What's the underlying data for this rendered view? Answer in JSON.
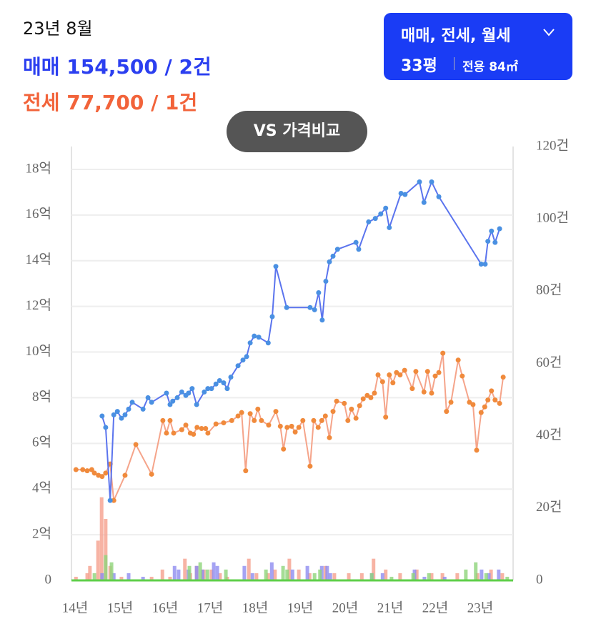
{
  "header": {
    "period": "23년 8월",
    "sale": "매매 154,500 / 2건",
    "jeonse": "전세 77,700 / 1건"
  },
  "filter": {
    "types": "매매, 전세, 월세",
    "size": "33평",
    "area": "전용 84㎡"
  },
  "compare_button": "VS 가격비교",
  "chart_data": {
    "type": "combo",
    "grid": true,
    "xlim": [
      2013.92,
      2023.73
    ],
    "xticks": [
      {
        "value": 2014,
        "label": "14년"
      },
      {
        "value": 2015,
        "label": "15년"
      },
      {
        "value": 2016,
        "label": "16년"
      },
      {
        "value": 2017,
        "label": "17년"
      },
      {
        "value": 2018,
        "label": "18년"
      },
      {
        "value": 2019,
        "label": "19년"
      },
      {
        "value": 2020,
        "label": "20년"
      },
      {
        "value": 2021,
        "label": "21년"
      },
      {
        "value": 2022,
        "label": "22년"
      },
      {
        "value": 2023,
        "label": "23년"
      }
    ],
    "ylim": [
      0,
      19
    ],
    "yticks": [
      0,
      {
        "value": 2,
        "label": "2억"
      },
      {
        "value": 4,
        "label": "4억"
      },
      {
        "value": 6,
        "label": "6억"
      },
      {
        "value": 8,
        "label": "8억"
      },
      {
        "value": 10,
        "label": "10억"
      },
      {
        "value": 12,
        "label": "12억"
      },
      {
        "value": 14,
        "label": "14억"
      },
      {
        "value": 16,
        "label": "16억"
      },
      {
        "value": 18,
        "label": "18억"
      }
    ],
    "y2lim": [
      0,
      120
    ],
    "y2ticks": [
      0,
      {
        "value": 20,
        "label": "20건"
      },
      {
        "value": 40,
        "label": "40건"
      },
      {
        "value": 60,
        "label": "60건"
      },
      {
        "value": 80,
        "label": "80건"
      },
      {
        "value": 100,
        "label": "100건"
      },
      {
        "value": 120,
        "label": "120건"
      }
    ],
    "series": [
      {
        "type": "bar",
        "axis": "y2",
        "color": "#f5a08d",
        "x": [
          2014.02,
          2014.27,
          2014.33,
          2014.51,
          2014.59,
          2014.68,
          2014.78,
          2015.03,
          2015.7,
          2015.94,
          2016.11,
          2016.44,
          2016.56,
          2016.7,
          2016.86,
          2017.03,
          2017.22,
          2017.38,
          2017.86,
          2018.03,
          2018.29,
          2018.44,
          2018.76,
          2018.97,
          2019.21,
          2019.56,
          2019.76,
          2020.08,
          2020.37,
          2020.63,
          2020.9,
          2021.22,
          2021.59,
          2021.92,
          2022.16,
          2022.49,
          2022.94,
          2023.24,
          2023.49
        ],
        "values": [
          1,
          2,
          4,
          11,
          23,
          17,
          4,
          1,
          1,
          3,
          1,
          6,
          2,
          4,
          3,
          3,
          2,
          1,
          6,
          2,
          2,
          3,
          6,
          3,
          2,
          4,
          2,
          2,
          2,
          6,
          3,
          2,
          3,
          2,
          2,
          2,
          2,
          3,
          2
        ]
      },
      {
        "type": "bar",
        "axis": "y2",
        "color": "#8f8cf0",
        "x": [
          2014.6,
          2014.86,
          2015.19,
          2015.51,
          2016.21,
          2016.3,
          2016.52,
          2016.7,
          2016.83,
          2017.08,
          2017.16,
          2017.76,
          2017.94,
          2018.37,
          2018.83,
          2019.16,
          2019.48,
          2019.6,
          2019.67,
          2020.59,
          2020.83,
          2021.54,
          2021.76,
          2022.21,
          2023.03,
          2023.19,
          2023.41
        ],
        "values": [
          2,
          2,
          2,
          1,
          4,
          3,
          3,
          4,
          3,
          5,
          4,
          4,
          2,
          5,
          3,
          4,
          4,
          4,
          2,
          2,
          2,
          3,
          1,
          1,
          3,
          2,
          3
        ]
      },
      {
        "type": "bar",
        "axis": "y2",
        "color": "#8fd47a",
        "x": [
          2014.43,
          2014.68,
          2014.81,
          2016.54,
          2016.78,
          2016.94,
          2017.35,
          2018.24,
          2018.62,
          2018.71,
          2019.32,
          2019.44,
          2020.59,
          2021.03,
          2021.51,
          2021.86,
          2022.68,
          2022.9,
          2023.13,
          2023.6
        ],
        "values": [
          2,
          7,
          5,
          4,
          5,
          3,
          3,
          3,
          4,
          3,
          2,
          3,
          2,
          1,
          2,
          2,
          3,
          5,
          2,
          1
        ]
      },
      {
        "type": "line",
        "color": "#f5a48a",
        "marker": "#f08a3c",
        "x": [
          2014.02,
          2014.17,
          2014.27,
          2014.37,
          2014.43,
          2014.52,
          2014.6,
          2014.68,
          2014.78,
          2014.86,
          2015.11,
          2015.35,
          2015.7,
          2015.95,
          2016.03,
          2016.11,
          2016.19,
          2016.37,
          2016.46,
          2016.56,
          2016.63,
          2016.71,
          2016.81,
          2016.9,
          2016.95,
          2017.13,
          2017.3,
          2017.48,
          2017.62,
          2017.7,
          2017.79,
          2017.89,
          2017.98,
          2018.06,
          2018.14,
          2018.3,
          2018.46,
          2018.56,
          2018.63,
          2018.71,
          2018.81,
          2018.89,
          2018.97,
          2019.06,
          2019.22,
          2019.3,
          2019.4,
          2019.48,
          2019.56,
          2019.65,
          2019.73,
          2019.81,
          2019.98,
          2020.06,
          2020.14,
          2020.24,
          2020.32,
          2020.4,
          2020.49,
          2020.57,
          2020.65,
          2020.73,
          2020.83,
          2020.9,
          2020.98,
          2021.06,
          2021.14,
          2021.22,
          2021.32,
          2021.49,
          2021.57,
          2021.75,
          2021.83,
          2021.92,
          2022.0,
          2022.08,
          2022.17,
          2022.25,
          2022.35,
          2022.51,
          2022.6,
          2022.76,
          2022.84,
          2022.92,
          2023.02,
          2023.1,
          2023.17,
          2023.25,
          2023.33,
          2023.43,
          2023.51
        ],
        "values": [
          4.85,
          4.85,
          4.8,
          4.85,
          4.7,
          4.6,
          4.55,
          4.7,
          5.1,
          3.5,
          4.6,
          5.95,
          4.65,
          7.0,
          6.45,
          7.0,
          6.45,
          6.6,
          6.8,
          6.45,
          6.4,
          6.7,
          6.65,
          6.65,
          6.45,
          6.85,
          6.9,
          7.0,
          7.2,
          7.35,
          4.8,
          7.3,
          7.0,
          7.5,
          7.0,
          6.8,
          7.4,
          6.75,
          5.75,
          6.7,
          6.75,
          6.5,
          6.7,
          7.0,
          5.0,
          7.0,
          6.7,
          7.0,
          7.2,
          6.25,
          7.4,
          7.85,
          7.75,
          7.0,
          7.5,
          7.1,
          7.65,
          7.95,
          8.1,
          8.0,
          8.2,
          9.0,
          8.7,
          7.15,
          9.0,
          8.65,
          9.1,
          9.0,
          9.2,
          8.4,
          9.15,
          8.25,
          9.15,
          8.2,
          8.95,
          9.1,
          9.95,
          7.4,
          7.8,
          9.65,
          8.95,
          7.8,
          7.7,
          5.7,
          7.35,
          7.6,
          7.9,
          8.3,
          7.9,
          7.75,
          8.9
        ]
      },
      {
        "type": "line",
        "color": "#5b74ee",
        "marker": "#4a90e2",
        "x": [
          2014.6,
          2014.68,
          2014.78,
          2014.86,
          2014.94,
          2015.03,
          2015.11,
          2015.19,
          2015.27,
          2015.51,
          2015.62,
          2015.7,
          2016.03,
          2016.11,
          2016.17,
          2016.27,
          2016.37,
          2016.46,
          2016.52,
          2016.6,
          2016.7,
          2016.87,
          2016.95,
          2017.03,
          2017.13,
          2017.21,
          2017.3,
          2017.38,
          2017.46,
          2017.62,
          2017.73,
          2017.81,
          2017.89,
          2017.98,
          2018.08,
          2018.29,
          2018.38,
          2018.46,
          2018.7,
          2019.22,
          2019.32,
          2019.41,
          2019.49,
          2019.57,
          2019.65,
          2019.73,
          2019.83,
          2020.24,
          2020.3,
          2020.52,
          2020.67,
          2020.79,
          2020.9,
          2020.98,
          2021.24,
          2021.33,
          2021.65,
          2021.75,
          2021.92,
          2022.08,
          2023.02,
          2023.11,
          2023.17,
          2023.25,
          2023.33,
          2023.43
        ],
        "values": [
          7.2,
          6.7,
          3.5,
          7.25,
          7.4,
          7.1,
          7.25,
          7.5,
          7.8,
          7.5,
          8.0,
          7.8,
          8.2,
          7.7,
          7.85,
          8.0,
          8.25,
          8.1,
          8.2,
          8.4,
          7.7,
          8.25,
          8.4,
          8.4,
          8.6,
          8.75,
          8.65,
          8.4,
          8.9,
          9.4,
          9.65,
          9.8,
          10.4,
          10.7,
          10.65,
          10.4,
          11.55,
          13.75,
          11.95,
          11.95,
          11.85,
          12.6,
          11.4,
          13.1,
          13.95,
          14.2,
          14.5,
          14.8,
          14.5,
          15.7,
          15.85,
          16.05,
          16.3,
          15.45,
          16.95,
          16.9,
          17.45,
          16.55,
          17.45,
          16.8,
          13.85,
          13.85,
          14.85,
          15.3,
          14.8,
          15.4
        ]
      }
    ]
  }
}
